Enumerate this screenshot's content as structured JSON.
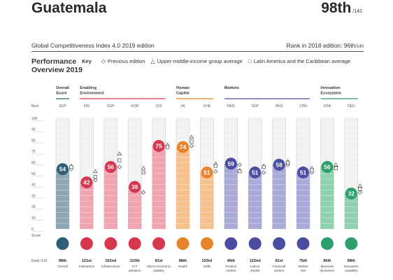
{
  "header": {
    "country": "Guatemala",
    "rank": "98th",
    "rank_of": "/141",
    "edition": "Global Competitiveness Index 4.0 2019 edition",
    "rank_2018_label": "Rank in 2018 edition: 96th",
    "rank_2018_of": "/140"
  },
  "section": {
    "title": "Performance Overview 2019",
    "legend_key": "Key",
    "legend_items": [
      {
        "symbol": "◇",
        "label": "Previous edition"
      },
      {
        "symbol": "△",
        "label": "Upper-middle-income group average"
      },
      {
        "symbol": "□",
        "label": "Latin America and the Caribbean average"
      }
    ]
  },
  "chart_data": {
    "type": "bar",
    "ylim": [
      0,
      100
    ],
    "y_ticks": [
      0,
      10,
      20,
      30,
      40,
      50,
      60,
      70,
      80,
      90,
      100
    ],
    "y_axis_label": "Score",
    "best_label": "Best",
    "rank_row_label": "Rank /141",
    "groups": [
      {
        "label": "Overall Score",
        "color": "#2f5d75",
        "start": 0,
        "count": 1
      },
      {
        "label": "Enabling Environment",
        "color": "#d5374f",
        "start": 1,
        "count": 4
      },
      {
        "label": "Human Capital",
        "color": "#e8832a",
        "start": 5,
        "count": 2
      },
      {
        "label": "Markets",
        "color": "#4b4ea0",
        "start": 7,
        "count": 4
      },
      {
        "label": "Innovation Ecosystem",
        "color": "#2e9e6a",
        "start": 11,
        "count": 2
      }
    ],
    "pillars": [
      {
        "name": "Overall",
        "best": "SGP",
        "score": 54,
        "rank": "98th",
        "previous": 54,
        "group_avg": 57,
        "region_avg": 56,
        "color": "#2f5d75",
        "bar_color": "#8ea7b3"
      },
      {
        "name": "Institutions",
        "best": "FIN",
        "score": 42,
        "rank": "121st",
        "previous": 44,
        "group_avg": 52,
        "region_avg": 47,
        "color": "#d5374f",
        "bar_color": "#f0a3b0"
      },
      {
        "name": "Infrastructure",
        "best": "SGP",
        "score": 56,
        "rank": "102nd",
        "previous": 56,
        "group_avg": 68,
        "region_avg": 62,
        "color": "#d5374f",
        "bar_color": "#f0a3b0"
      },
      {
        "name": "ICT adoption",
        "best": "KOR",
        "score": 38,
        "rank": "110th",
        "previous": 33,
        "group_avg": 55,
        "region_avg": 51,
        "color": "#d5374f",
        "bar_color": "#f0a3b0"
      },
      {
        "name": "Macro-economic stability",
        "best": "(33)",
        "score": 75,
        "rank": "81st",
        "previous": 75,
        "group_avg": 76,
        "region_avg": 74,
        "color": "#d5374f",
        "bar_color": "#f0a3b0"
      },
      {
        "name": "Health",
        "best": "(4)",
        "score": 74,
        "rank": "88th",
        "previous": 75,
        "group_avg": 83,
        "region_avg": 79,
        "color": "#e8832a",
        "bar_color": "#f6c08f"
      },
      {
        "name": "Skills",
        "best": "CHE",
        "score": 51,
        "rank": "103rd",
        "previous": 52,
        "group_avg": 59,
        "region_avg": 57,
        "color": "#e8832a",
        "bar_color": "#f6c08f"
      },
      {
        "name": "Product market",
        "best": "HKG",
        "score": 59,
        "rank": "46th",
        "previous": 58,
        "group_avg": 53,
        "region_avg": 52,
        "color": "#4b4ea0",
        "bar_color": "#a9aad8"
      },
      {
        "name": "Labour market",
        "best": "SGP",
        "score": 51,
        "rank": "122nd",
        "previous": 51,
        "group_avg": 57,
        "region_avg": 56,
        "color": "#4b4ea0",
        "bar_color": "#a9aad8"
      },
      {
        "name": "Financial system",
        "best": "HKG",
        "score": 58,
        "rank": "81st",
        "previous": 58,
        "group_avg": 61,
        "region_avg": 60,
        "color": "#4b4ea0",
        "bar_color": "#a9aad8"
      },
      {
        "name": "Market size",
        "best": "CHN",
        "score": 51,
        "rank": "75th",
        "previous": 51,
        "group_avg": 55,
        "region_avg": 53,
        "color": "#4b4ea0",
        "bar_color": "#a9aad8"
      },
      {
        "name": "Business dynamism",
        "best": "USA",
        "score": 56,
        "rank": "96th",
        "previous": 56,
        "group_avg": 58,
        "region_avg": 55,
        "color": "#2e9e6a",
        "bar_color": "#8fd0b1"
      },
      {
        "name": "Innovation capability",
        "best": "DEU",
        "score": 32,
        "rank": "98th",
        "previous": 33,
        "group_avg": 39,
        "region_avg": 36,
        "color": "#2e9e6a",
        "bar_color": "#8fd0b1"
      }
    ]
  }
}
